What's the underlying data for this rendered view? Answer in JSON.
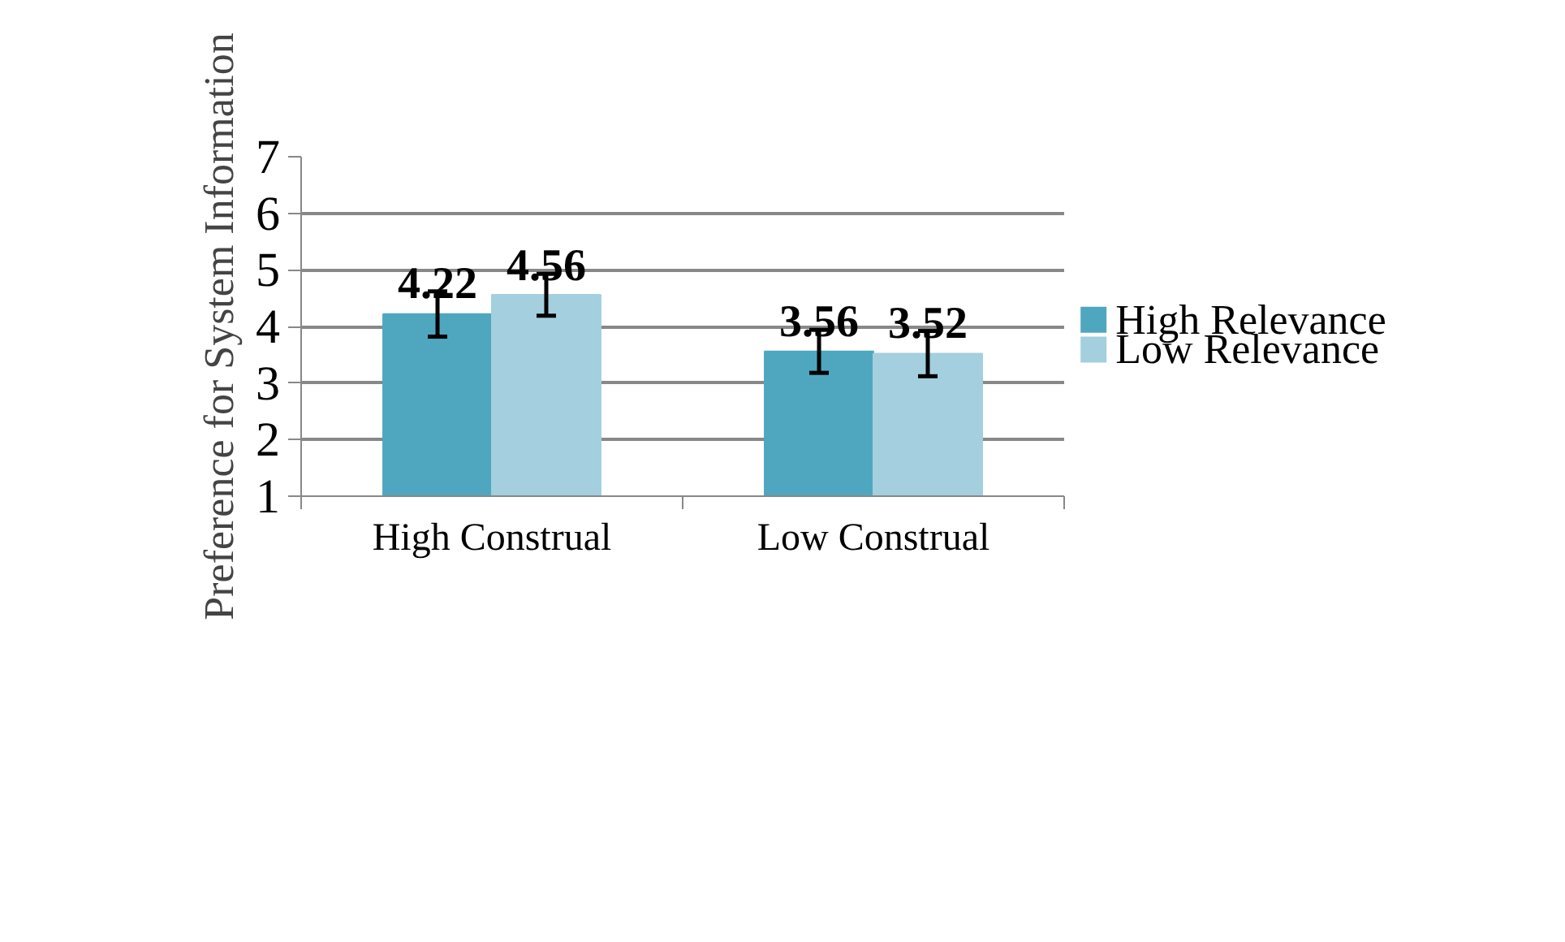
{
  "chart_data": {
    "type": "bar",
    "ylabel": "Preference for System Information",
    "categories": [
      "High Construal",
      "Low Construal"
    ],
    "series": [
      {
        "name": "High Relevance",
        "color": "#4fa7bf",
        "values": [
          4.22,
          3.56
        ],
        "errors": [
          0.4,
          0.38
        ]
      },
      {
        "name": "Low Relevance",
        "color": "#a3cfdf",
        "values": [
          4.56,
          3.52
        ],
        "errors": [
          0.37,
          0.4
        ]
      }
    ],
    "ylim": [
      1,
      7
    ],
    "yticks": [
      1,
      2,
      3,
      4,
      5,
      6,
      7
    ],
    "grid": "y",
    "legend": "right",
    "data_labels": true
  }
}
